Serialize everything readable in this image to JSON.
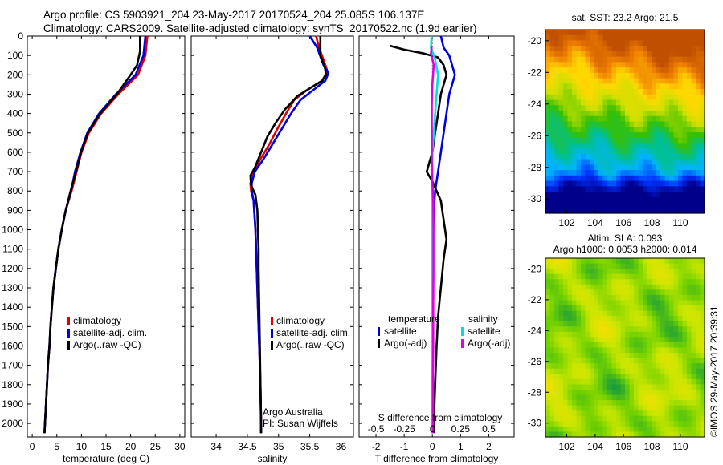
{
  "header": {
    "line1": "Argo profile: CS 5903921_204 23-May-2017 20170524_204 25.085S 106.137E",
    "line2": "Climatology: CARS2009. Satellite-adjusted climatology: synTS_20170522.nc (1.9d earlier)"
  },
  "footer_stamp": "©IMOS 29-May-2017 20:39:31",
  "colors": {
    "climatology": "#e00000",
    "satellite": "#0000e0",
    "argo": "#000000",
    "satellite_salinity": "#00e0e0",
    "argo_salinity": "#e000e0"
  },
  "chart_data": [
    {
      "type": "line",
      "id": "temperature",
      "xlabel": "temperature (deg C)",
      "ylabel": "",
      "xlim": [
        -1,
        31
      ],
      "ylim": [
        2070,
        0
      ],
      "xticks": [
        0,
        5,
        10,
        15,
        20,
        25,
        30
      ],
      "yticks": [
        0,
        100,
        200,
        300,
        400,
        500,
        600,
        700,
        800,
        900,
        1000,
        1100,
        1200,
        1300,
        1400,
        1500,
        1600,
        1700,
        1800,
        1900,
        2000
      ],
      "legend": [
        "climatology",
        "satellite-adj. clim.",
        "Argo(..raw -QC)"
      ],
      "series": [
        {
          "name": "climatology",
          "color": "#e00000",
          "points": [
            [
              23.4,
              0
            ],
            [
              23.0,
              100
            ],
            [
              21.5,
              200
            ],
            [
              17.5,
              300
            ],
            [
              14.0,
              400
            ],
            [
              11.5,
              500
            ],
            [
              10.0,
              600
            ],
            [
              9.0,
              700
            ],
            [
              8.0,
              800
            ],
            [
              6.8,
              900
            ],
            [
              6.0,
              1000
            ],
            [
              5.3,
              1100
            ],
            [
              4.8,
              1200
            ],
            [
              4.3,
              1300
            ],
            [
              4.0,
              1400
            ],
            [
              3.7,
              1500
            ],
            [
              3.5,
              1600
            ],
            [
              3.2,
              1700
            ],
            [
              3.0,
              1800
            ],
            [
              2.8,
              1900
            ],
            [
              2.6,
              2000
            ],
            [
              2.5,
              2050
            ]
          ]
        },
        {
          "name": "satellite-adj. clim.",
          "color": "#0000e0",
          "points": [
            [
              23.0,
              0
            ],
            [
              22.6,
              100
            ],
            [
              21.0,
              200
            ],
            [
              17.0,
              300
            ],
            [
              13.6,
              400
            ],
            [
              11.2,
              500
            ],
            [
              9.8,
              600
            ],
            [
              8.7,
              700
            ],
            [
              7.9,
              800
            ],
            [
              6.8,
              900
            ],
            [
              6.0,
              1000
            ],
            [
              5.3,
              1100
            ],
            [
              4.8,
              1200
            ],
            [
              4.3,
              1300
            ],
            [
              4.0,
              1400
            ],
            [
              3.7,
              1500
            ],
            [
              3.5,
              1600
            ],
            [
              3.2,
              1700
            ],
            [
              3.0,
              1800
            ],
            [
              2.8,
              1900
            ],
            [
              2.6,
              2000
            ],
            [
              2.5,
              2050
            ]
          ]
        },
        {
          "name": "Argo(..raw -QC)",
          "color": "#000000",
          "points": [
            [
              21.9,
              0
            ],
            [
              21.9,
              80
            ],
            [
              21.3,
              150
            ],
            [
              20.0,
              200
            ],
            [
              17.2,
              300
            ],
            [
              13.8,
              400
            ],
            [
              11.3,
              500
            ],
            [
              9.9,
              600
            ],
            [
              8.9,
              700
            ],
            [
              7.8,
              800
            ],
            [
              6.8,
              900
            ],
            [
              6.0,
              1000
            ],
            [
              5.3,
              1100
            ],
            [
              4.8,
              1200
            ],
            [
              4.3,
              1300
            ],
            [
              4.0,
              1400
            ],
            [
              3.7,
              1500
            ],
            [
              3.5,
              1600
            ],
            [
              3.2,
              1700
            ],
            [
              3.0,
              1800
            ],
            [
              2.8,
              1900
            ],
            [
              2.6,
              2000
            ],
            [
              2.5,
              2050
            ]
          ]
        }
      ]
    },
    {
      "type": "line",
      "id": "salinity",
      "xlabel": "salinity",
      "ylabel": "",
      "xlim": [
        33.6,
        36.2
      ],
      "ylim": [
        2070,
        0
      ],
      "xticks": [
        34,
        34.5,
        35,
        35.5,
        36
      ],
      "legend": [
        "climatology",
        "satellite-adj. clim.",
        "Argo(..raw -QC)"
      ],
      "annotation": [
        "Argo Australia",
        "PI: Susan Wijffels"
      ],
      "series": [
        {
          "name": "climatology",
          "color": "#e00000",
          "points": [
            [
              35.6,
              0
            ],
            [
              35.65,
              60
            ],
            [
              35.75,
              150
            ],
            [
              35.78,
              180
            ],
            [
              35.7,
              230
            ],
            [
              35.45,
              280
            ],
            [
              35.25,
              330
            ],
            [
              35.12,
              400
            ],
            [
              34.98,
              480
            ],
            [
              34.85,
              560
            ],
            [
              34.7,
              640
            ],
            [
              34.6,
              700
            ],
            [
              34.55,
              760
            ],
            [
              34.56,
              800
            ],
            [
              34.6,
              850
            ],
            [
              34.63,
              1000
            ],
            [
              34.65,
              1200
            ],
            [
              34.67,
              1400
            ],
            [
              34.69,
              1600
            ],
            [
              34.71,
              1800
            ],
            [
              34.72,
              2000
            ],
            [
              34.72,
              2050
            ]
          ]
        },
        {
          "name": "satellite-adj. clim.",
          "color": "#0000e0",
          "points": [
            [
              35.5,
              0
            ],
            [
              35.62,
              60
            ],
            [
              35.72,
              150
            ],
            [
              35.8,
              190
            ],
            [
              35.75,
              230
            ],
            [
              35.55,
              280
            ],
            [
              35.35,
              330
            ],
            [
              35.2,
              400
            ],
            [
              35.05,
              480
            ],
            [
              34.9,
              560
            ],
            [
              34.75,
              640
            ],
            [
              34.62,
              700
            ],
            [
              34.57,
              760
            ],
            [
              34.57,
              800
            ],
            [
              34.6,
              850
            ],
            [
              34.63,
              1000
            ],
            [
              34.65,
              1200
            ],
            [
              34.67,
              1400
            ],
            [
              34.69,
              1600
            ],
            [
              34.71,
              1800
            ],
            [
              34.72,
              2000
            ],
            [
              34.72,
              2050
            ]
          ]
        },
        {
          "name": "Argo(..raw -QC)",
          "color": "#000000",
          "points": [
            [
              35.67,
              0
            ],
            [
              35.67,
              100
            ],
            [
              35.74,
              160
            ],
            [
              35.76,
              200
            ],
            [
              35.7,
              230
            ],
            [
              35.5,
              270
            ],
            [
              35.3,
              310
            ],
            [
              35.1,
              380
            ],
            [
              34.95,
              450
            ],
            [
              34.82,
              520
            ],
            [
              34.72,
              600
            ],
            [
              34.62,
              680
            ],
            [
              34.55,
              720
            ],
            [
              34.56,
              770
            ],
            [
              34.63,
              820
            ],
            [
              34.66,
              900
            ],
            [
              34.67,
              1000
            ],
            [
              34.68,
              1100
            ],
            [
              34.68,
              1200
            ],
            [
              34.69,
              1400
            ],
            [
              34.7,
              1600
            ],
            [
              34.71,
              1800
            ],
            [
              34.72,
              2000
            ],
            [
              34.72,
              2050
            ]
          ]
        }
      ]
    },
    {
      "type": "line",
      "id": "difference",
      "xlabel": "T difference from climatology",
      "xlabel_top": "S difference from climatology",
      "xlim": [
        -2.6,
        2.9
      ],
      "ylim": [
        2070,
        0
      ],
      "xticks": [
        -2,
        -1,
        0,
        1,
        2
      ],
      "xticks_top": [
        -0.5,
        -0.25,
        0,
        0.25,
        0.5
      ],
      "legend_groups": [
        {
          "title": "temperature",
          "items": [
            "satellite",
            "Argo(-adj)"
          ]
        },
        {
          "title": "salinity",
          "items": [
            "satellite",
            "Argo(-adj)"
          ]
        }
      ],
      "series": [
        {
          "name": "temperature satellite",
          "color": "#0000e0",
          "points": [
            [
              0.3,
              0
            ],
            [
              0.4,
              60
            ],
            [
              0.6,
              100
            ],
            [
              0.7,
              150
            ],
            [
              0.8,
              200
            ],
            [
              0.6,
              300
            ],
            [
              0.5,
              400
            ],
            [
              0.4,
              500
            ],
            [
              0.3,
              600
            ],
            [
              0.2,
              700
            ],
            [
              0.1,
              800
            ],
            [
              0.05,
              900
            ],
            [
              0.03,
              1000
            ],
            [
              0.02,
              1200
            ],
            [
              0.02,
              1400
            ],
            [
              0.02,
              1600
            ],
            [
              0.02,
              1800
            ],
            [
              0.02,
              2000
            ],
            [
              0.02,
              2050
            ]
          ]
        },
        {
          "name": "temperature Argo(-adj)",
          "color": "#000000",
          "points": [
            [
              -1.5,
              50
            ],
            [
              -1.0,
              70
            ],
            [
              -0.3,
              90
            ],
            [
              0.2,
              110
            ],
            [
              0.4,
              150
            ],
            [
              0.5,
              200
            ],
            [
              0.3,
              300
            ],
            [
              0.2,
              400
            ],
            [
              0.1,
              500
            ],
            [
              0.0,
              600
            ],
            [
              -0.2,
              700
            ],
            [
              0.0,
              750
            ],
            [
              0.3,
              850
            ],
            [
              0.4,
              950
            ],
            [
              0.5,
              1050
            ],
            [
              0.4,
              1150
            ],
            [
              0.3,
              1300
            ],
            [
              0.2,
              1450
            ],
            [
              0.15,
              1600
            ],
            [
              0.1,
              1800
            ],
            [
              0.05,
              2000
            ],
            [
              0.05,
              2050
            ]
          ]
        },
        {
          "name": "salinity satellite",
          "color": "#00e0e0",
          "points": [
            [
              -0.03,
              0
            ],
            [
              -0.05,
              60
            ],
            [
              0.1,
              120
            ],
            [
              0.2,
              200
            ],
            [
              0.15,
              300
            ],
            [
              0.1,
              400
            ],
            [
              0.05,
              500
            ],
            [
              0.0,
              600
            ],
            [
              0.0,
              700
            ],
            [
              0.0,
              800
            ],
            [
              0.0,
              900
            ],
            [
              0.0,
              1000
            ],
            [
              0.0,
              1200
            ],
            [
              0.0,
              1400
            ],
            [
              0.0,
              1600
            ],
            [
              0.0,
              1800
            ],
            [
              0.0,
              2000
            ],
            [
              0.0,
              2050
            ]
          ]
        },
        {
          "name": "salinity Argo(-adj)",
          "color": "#e000e0",
          "points": [
            [
              -0.02,
              50
            ],
            [
              -0.05,
              90
            ],
            [
              0.05,
              150
            ],
            [
              0.0,
              250
            ],
            [
              -0.02,
              350
            ],
            [
              -0.02,
              450
            ],
            [
              -0.02,
              550
            ],
            [
              -0.02,
              650
            ],
            [
              0.0,
              750
            ],
            [
              0.03,
              850
            ],
            [
              0.04,
              1000
            ],
            [
              0.04,
              1100
            ],
            [
              0.04,
              1200
            ],
            [
              0.03,
              1400
            ],
            [
              0.03,
              1600
            ],
            [
              0.02,
              1800
            ],
            [
              0.02,
              2000
            ],
            [
              0.02,
              2050
            ]
          ]
        }
      ]
    },
    {
      "type": "heatmap",
      "id": "sst-map",
      "title": "sat. SST: 23.2  Argo: 21.5",
      "xlim": [
        100.5,
        111.7
      ],
      "ylim": [
        -30.9,
        -19.3
      ],
      "xticks": [
        102,
        104,
        106,
        108,
        110
      ],
      "yticks": [
        -20,
        -22,
        -24,
        -26,
        -28,
        -30
      ],
      "colormap": [
        "#00008b",
        "#0032ff",
        "#00b4ff",
        "#00c090",
        "#36c000",
        "#cde000",
        "#ffd800",
        "#f08000",
        "#c05000"
      ]
    },
    {
      "type": "heatmap",
      "id": "sla-map",
      "title_lines": [
        "Altim. SLA: 0.093",
        "Argo h1000: 0.0053 h2000: 0.014"
      ],
      "xlim": [
        100.5,
        111.7
      ],
      "ylim": [
        -30.9,
        -19.3
      ],
      "xticks": [
        102,
        104,
        106,
        108,
        110
      ],
      "yticks": [
        -20,
        -22,
        -24,
        -26,
        -28,
        -30
      ],
      "colormap": [
        "#1a9e3a",
        "#6fd000",
        "#c8e600",
        "#f0e000"
      ]
    }
  ]
}
